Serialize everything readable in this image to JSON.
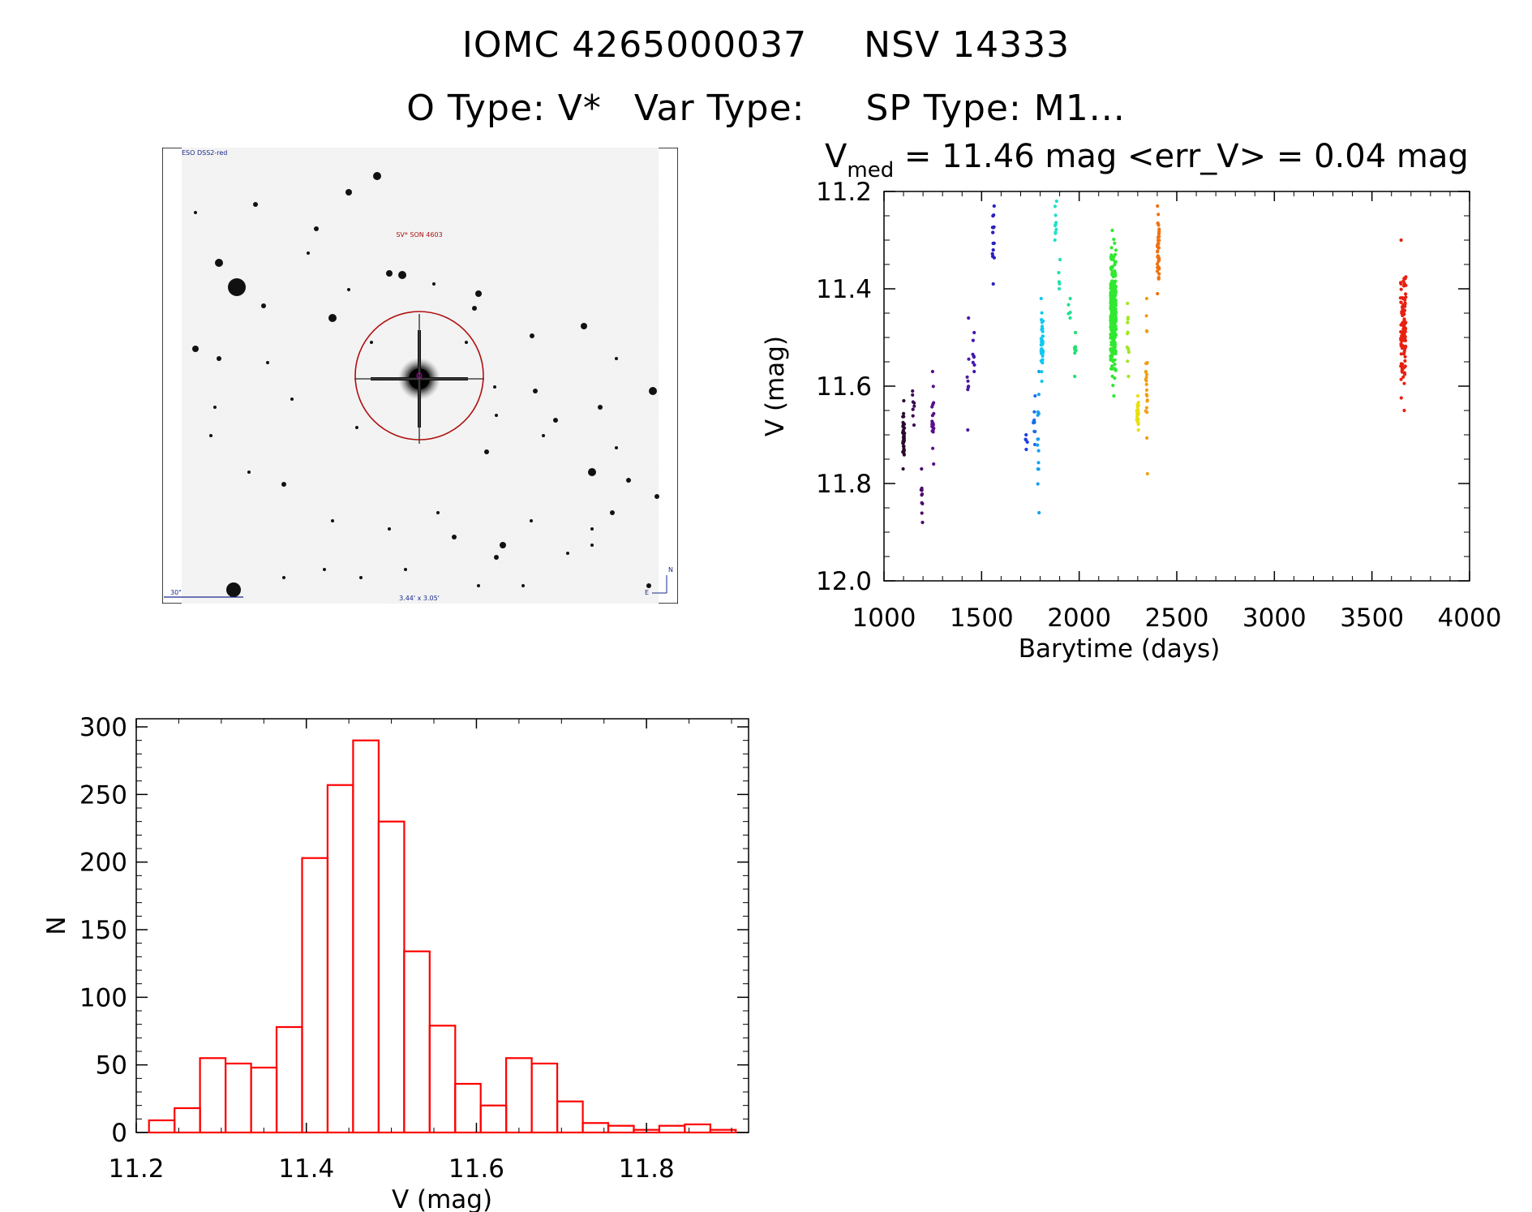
{
  "header": {
    "object_id": "IOMC 4265000037",
    "object_name": "NSV 14333",
    "o_type": "O Type: V*",
    "var_type": "Var Type:",
    "sp_type": "SP Type: M1..."
  },
  "image": {
    "survey": "ESO DSS2-red",
    "target_label": "SV* SON 4603",
    "scale_label": "30\"",
    "size_label": "3.44' x 3.05'",
    "north": "N",
    "east": "E"
  },
  "lightcurve_title": {
    "v": "V",
    "sub": "med",
    "rest": " = 11.46 mag <err_V> = 0.04 mag"
  },
  "chart_data": [
    {
      "type": "scatter",
      "xlabel": "Barytime (days)",
      "ylabel": "V (mag)",
      "xlim": [
        1000,
        4000
      ],
      "ylim": [
        12.0,
        11.2
      ],
      "xticks": [
        1000,
        1500,
        2000,
        2500,
        3000,
        3500,
        4000
      ],
      "yticks": [
        11.2,
        11.4,
        11.6,
        11.8,
        12.0
      ],
      "ytick_labels": [
        "11.2",
        "11.4",
        "11.6",
        "11.8",
        "12.0"
      ],
      "colors_note": "points colored by time, rainbow from black/purple to red",
      "groups": [
        {
          "x": 1100,
          "ymin": 11.63,
          "ymax": 11.77,
          "n": 40,
          "color": "#2b0a2e"
        },
        {
          "x": 1150,
          "ymin": 11.61,
          "ymax": 11.68,
          "n": 8,
          "color": "#3d0a55"
        },
        {
          "x": 1195,
          "ymin": 11.77,
          "ymax": 11.88,
          "n": 10,
          "color": "#4a0d6b"
        },
        {
          "x": 1250,
          "ymin": 11.57,
          "ymax": 11.76,
          "n": 18,
          "color": "#5a0f8a"
        },
        {
          "x": 1430,
          "ymin": 11.46,
          "ymax": 11.69,
          "n": 8,
          "color": "#4b1a9e"
        },
        {
          "x": 1460,
          "ymin": 11.49,
          "ymax": 11.57,
          "n": 8,
          "color": "#4217b0"
        },
        {
          "x": 1560,
          "ymin": 11.23,
          "ymax": 11.39,
          "n": 16,
          "color": "#2a1fc0"
        },
        {
          "x": 1730,
          "ymin": 11.7,
          "ymax": 11.73,
          "n": 5,
          "color": "#1f3fe0"
        },
        {
          "x": 1770,
          "ymin": 11.62,
          "ymax": 11.72,
          "n": 10,
          "color": "#1b6ee8"
        },
        {
          "x": 1790,
          "ymin": 11.57,
          "ymax": 11.86,
          "n": 14,
          "color": "#16a0f0"
        },
        {
          "x": 1810,
          "ymin": 11.42,
          "ymax": 11.59,
          "n": 40,
          "color": "#12c8f0"
        },
        {
          "x": 1880,
          "ymin": 11.22,
          "ymax": 11.3,
          "n": 10,
          "color": "#20e0c8"
        },
        {
          "x": 1900,
          "ymin": 11.34,
          "ymax": 11.4,
          "n": 5,
          "color": "#20e0b0"
        },
        {
          "x": 1950,
          "ymin": 11.42,
          "ymax": 11.46,
          "n": 5,
          "color": "#20e090"
        },
        {
          "x": 1980,
          "ymin": 11.49,
          "ymax": 11.58,
          "n": 8,
          "color": "#20e070"
        },
        {
          "x": 2175,
          "ymin": 11.28,
          "ymax": 11.62,
          "n": 260,
          "color": "#30e830"
        },
        {
          "x": 2250,
          "ymin": 11.43,
          "ymax": 11.58,
          "n": 12,
          "color": "#a0e820"
        },
        {
          "x": 2300,
          "ymin": 11.62,
          "ymax": 11.69,
          "n": 30,
          "color": "#e8e010"
        },
        {
          "x": 2345,
          "ymin": 11.42,
          "ymax": 11.78,
          "n": 25,
          "color": "#f0a010"
        },
        {
          "x": 2405,
          "ymin": 11.23,
          "ymax": 11.41,
          "n": 45,
          "color": "#f07010"
        },
        {
          "x": 3660,
          "ymin": 11.3,
          "ymax": 11.65,
          "n": 110,
          "color": "#e82010"
        }
      ]
    },
    {
      "type": "bar",
      "xlabel": "V (mag)",
      "ylabel": "N",
      "xlim": [
        11.2,
        11.92
      ],
      "ylim": [
        0,
        300
      ],
      "xticks": [
        11.2,
        11.4,
        11.6,
        11.8
      ],
      "xtick_labels": [
        "11.2",
        "11.4",
        "11.6",
        "11.8"
      ],
      "yticks": [
        0,
        50,
        100,
        150,
        200,
        250,
        300
      ],
      "bin_edges": [
        11.215,
        11.245,
        11.275,
        11.305,
        11.335,
        11.365,
        11.395,
        11.425,
        11.455,
        11.485,
        11.515,
        11.545,
        11.575,
        11.605,
        11.635,
        11.665,
        11.695,
        11.725,
        11.755,
        11.785,
        11.815,
        11.845,
        11.875,
        11.905
      ],
      "values": [
        9,
        18,
        55,
        51,
        48,
        78,
        203,
        257,
        290,
        230,
        134,
        79,
        36,
        20,
        55,
        51,
        23,
        7,
        5,
        2,
        5,
        6,
        2
      ],
      "color": "#ff0000"
    }
  ]
}
